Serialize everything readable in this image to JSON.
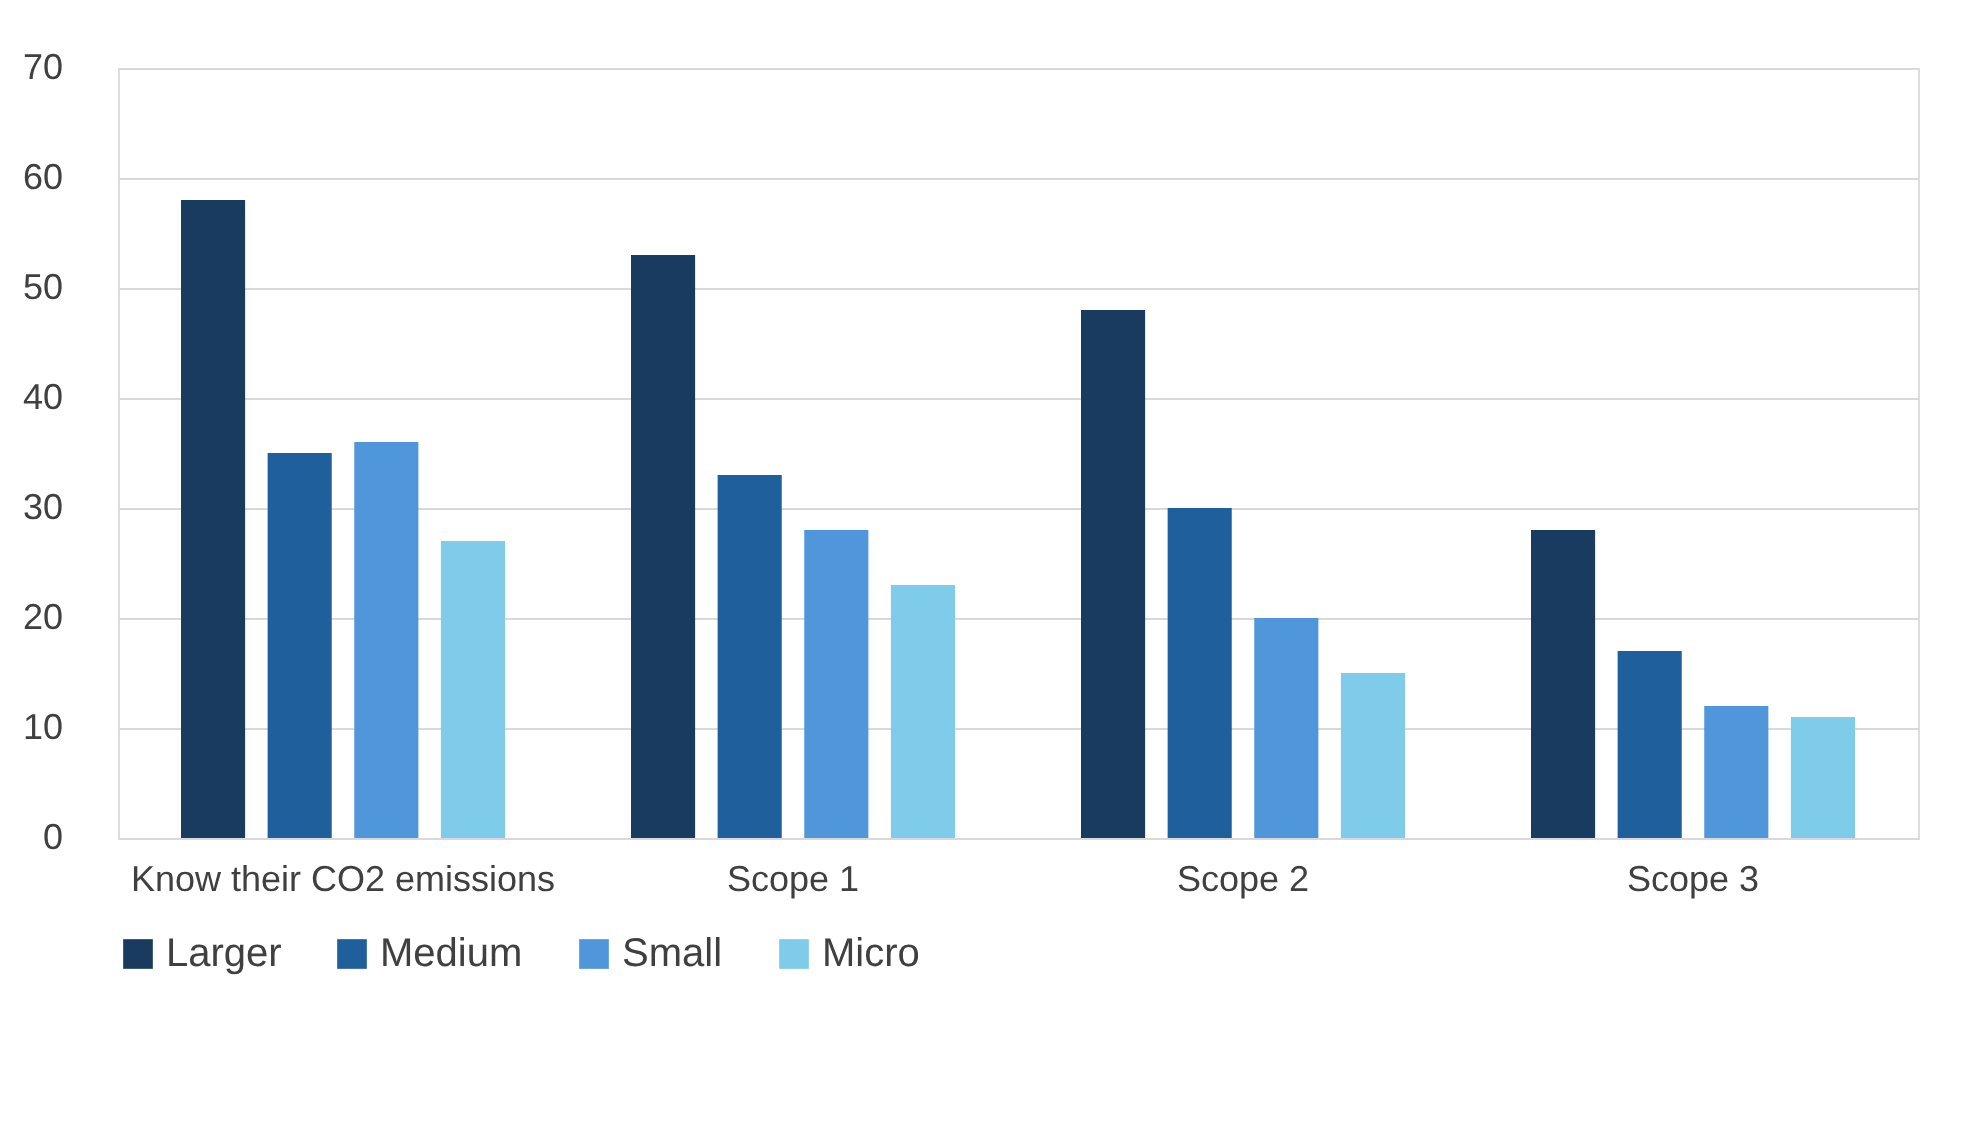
{
  "chart_data": {
    "type": "bar",
    "categories": [
      "Know their CO2 emissions",
      "Scope 1",
      "Scope 2",
      "Scope 3"
    ],
    "series": [
      {
        "name": "Larger",
        "color": "#193b5f",
        "values": [
          58,
          53,
          48,
          28
        ]
      },
      {
        "name": "Medium",
        "color": "#1f5f9b",
        "values": [
          35,
          33,
          30,
          17
        ]
      },
      {
        "name": "Small",
        "color": "#5096da",
        "values": [
          36,
          28,
          20,
          12
        ]
      },
      {
        "name": "Micro",
        "color": "#7fcbea",
        "values": [
          27,
          23,
          15,
          11
        ]
      }
    ],
    "ylim": [
      0,
      70
    ],
    "yticks": [
      0,
      10,
      20,
      30,
      40,
      50,
      60,
      70
    ],
    "grid": "y",
    "legend": "bottom"
  }
}
